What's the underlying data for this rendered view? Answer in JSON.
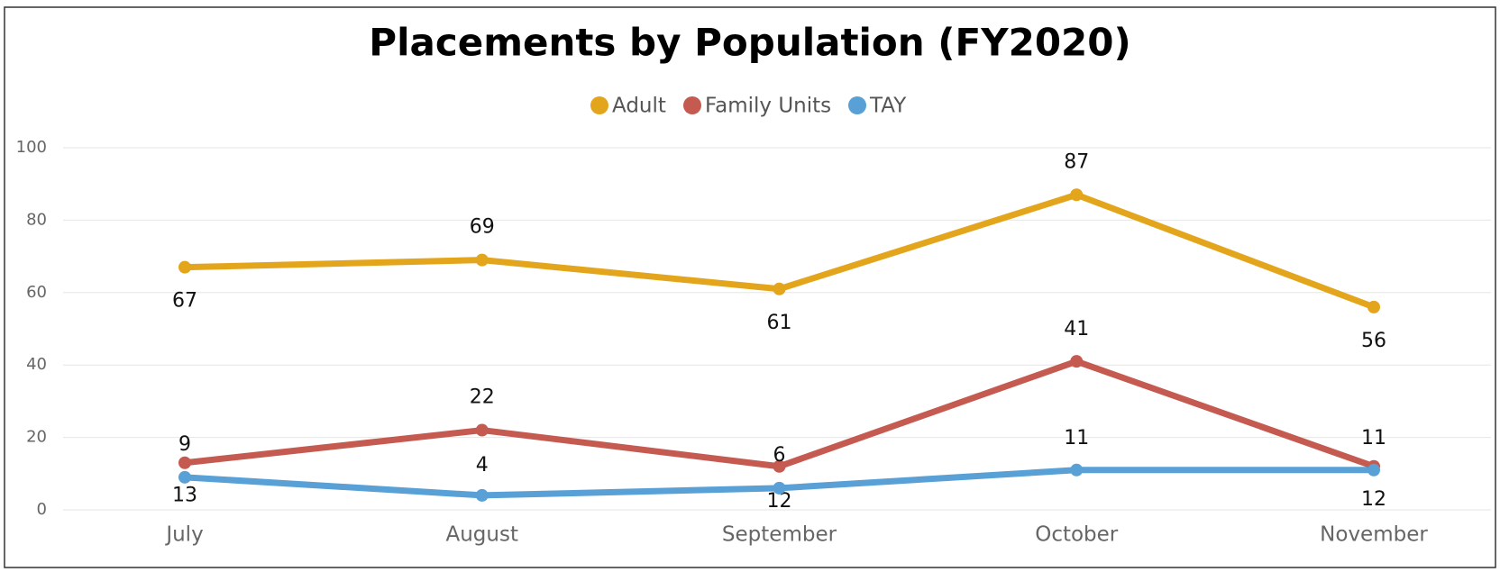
{
  "chart_data": {
    "type": "line",
    "title": "Placements by Population (FY2020)",
    "categories": [
      "July",
      "August",
      "September",
      "October",
      "November"
    ],
    "series": [
      {
        "name": "Adult",
        "color": "#e3a51c",
        "values": [
          67,
          69,
          61,
          87,
          56
        ]
      },
      {
        "name": "Family Units",
        "color": "#c55a50",
        "values": [
          13,
          22,
          12,
          41,
          12
        ]
      },
      {
        "name": "TAY",
        "color": "#58a0d5",
        "values": [
          9,
          4,
          6,
          11,
          11
        ]
      }
    ],
    "ylim": [
      0,
      100
    ],
    "yticks": [
      0,
      20,
      40,
      60,
      80,
      100
    ],
    "grid": true,
    "legend": "top"
  }
}
